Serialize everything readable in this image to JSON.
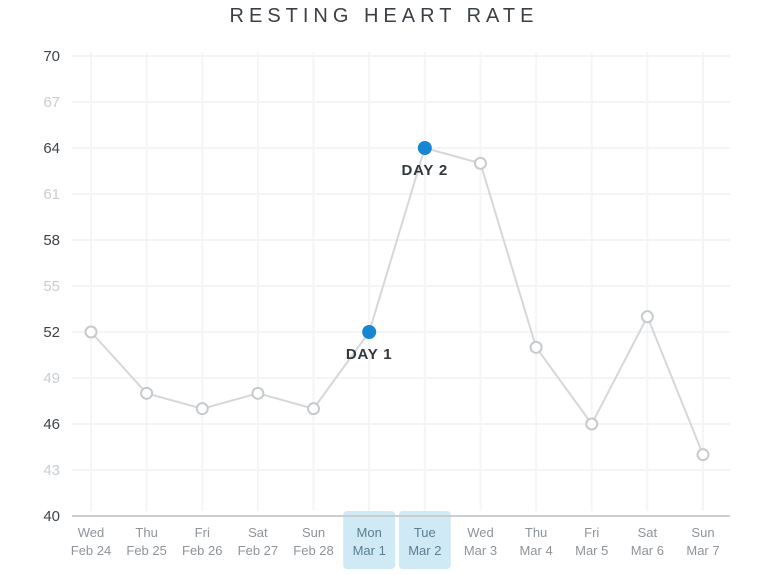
{
  "title": "RESTING HEART RATE",
  "chart_data": {
    "type": "line",
    "title": "RESTING HEART RATE",
    "ylim": [
      40,
      70
    ],
    "yticks": [
      40,
      43,
      46,
      49,
      52,
      55,
      58,
      61,
      64,
      67,
      70
    ],
    "grid": true,
    "legend": "none",
    "categories": [
      {
        "day": "Wed",
        "date": "Feb 24"
      },
      {
        "day": "Thu",
        "date": "Feb 25"
      },
      {
        "day": "Fri",
        "date": "Feb 26"
      },
      {
        "day": "Sat",
        "date": "Feb 27"
      },
      {
        "day": "Sun",
        "date": "Feb 28"
      },
      {
        "day": "Mon",
        "date": "Mar 1"
      },
      {
        "day": "Tue",
        "date": "Mar 2"
      },
      {
        "day": "Wed",
        "date": "Mar 3"
      },
      {
        "day": "Thu",
        "date": "Mar 4"
      },
      {
        "day": "Fri",
        "date": "Mar 5"
      },
      {
        "day": "Sat",
        "date": "Mar 6"
      },
      {
        "day": "Sun",
        "date": "Mar 7"
      }
    ],
    "values": [
      52,
      48,
      47,
      48,
      47,
      52,
      64,
      63,
      51,
      46,
      53,
      44
    ],
    "annotated_points": [
      {
        "index": 5,
        "label": "DAY 1"
      },
      {
        "index": 6,
        "label": "DAY 2"
      }
    ],
    "selected_day_indices": [
      5,
      6
    ],
    "colors": {
      "accent_blue": "#1787d1",
      "selected_label_bg": "#cfe9f5",
      "selected_label_text": "#5b7e90",
      "line": "#d5d7d9",
      "marker_stroke": "#c7cacd",
      "marker_fill": "#ffffff",
      "axis_line": "#cbced1",
      "gridline": "#f4f5f6",
      "tick_dark": "#3f444a",
      "tick_light": "#c8cdd1",
      "x_label": "#8e9499",
      "title_text": "#3a4045",
      "point_label": "#33383d",
      "background": "#ffffff"
    }
  }
}
